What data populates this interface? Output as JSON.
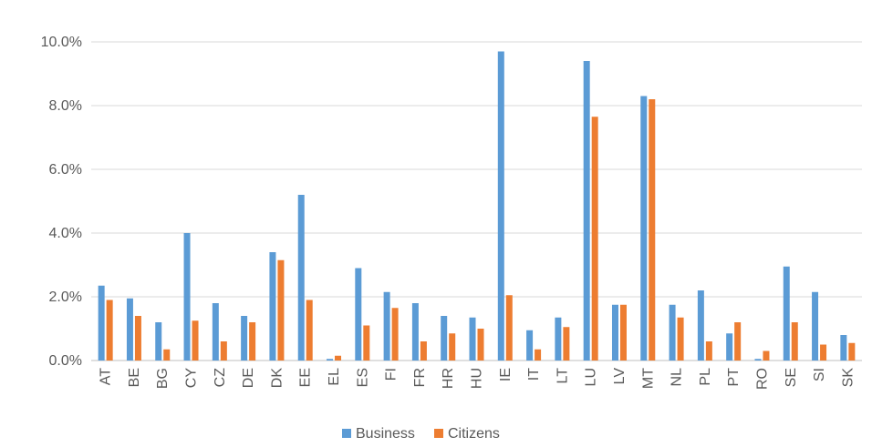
{
  "colors": {
    "business": "#5b9bd5",
    "citizens": "#ed7d31"
  },
  "chart_data": {
    "type": "bar",
    "categories": [
      "AT",
      "BE",
      "BG",
      "CY",
      "CZ",
      "DE",
      "DK",
      "EE",
      "EL",
      "ES",
      "FI",
      "FR",
      "HR",
      "HU",
      "IE",
      "IT",
      "LT",
      "LU",
      "LV",
      "MT",
      "NL",
      "PL",
      "PT",
      "RO",
      "SE",
      "SI",
      "SK"
    ],
    "series": [
      {
        "name": "Business",
        "color": "#5b9bd5",
        "values": [
          2.35,
          1.95,
          1.2,
          4.0,
          1.8,
          1.4,
          3.4,
          5.2,
          0.05,
          2.9,
          2.15,
          1.8,
          1.4,
          1.35,
          9.7,
          0.95,
          1.35,
          9.4,
          1.75,
          8.3,
          1.75,
          2.2,
          0.85,
          0.05,
          2.95,
          2.15,
          0.8
        ]
      },
      {
        "name": "Citizens",
        "color": "#ed7d31",
        "values": [
          1.9,
          1.4,
          0.35,
          1.25,
          0.6,
          1.2,
          3.15,
          1.9,
          0.15,
          1.1,
          1.65,
          0.6,
          0.85,
          1.0,
          2.05,
          0.35,
          1.05,
          7.65,
          1.75,
          8.2,
          1.35,
          0.6,
          1.2,
          0.3,
          1.2,
          0.5,
          0.55
        ]
      }
    ],
    "ylim": [
      0,
      10
    ],
    "yticks": [
      "0.0%",
      "2.0%",
      "4.0%",
      "6.0%",
      "8.0%",
      "10.0%"
    ],
    "grid": true,
    "legend": "bottom-center"
  }
}
